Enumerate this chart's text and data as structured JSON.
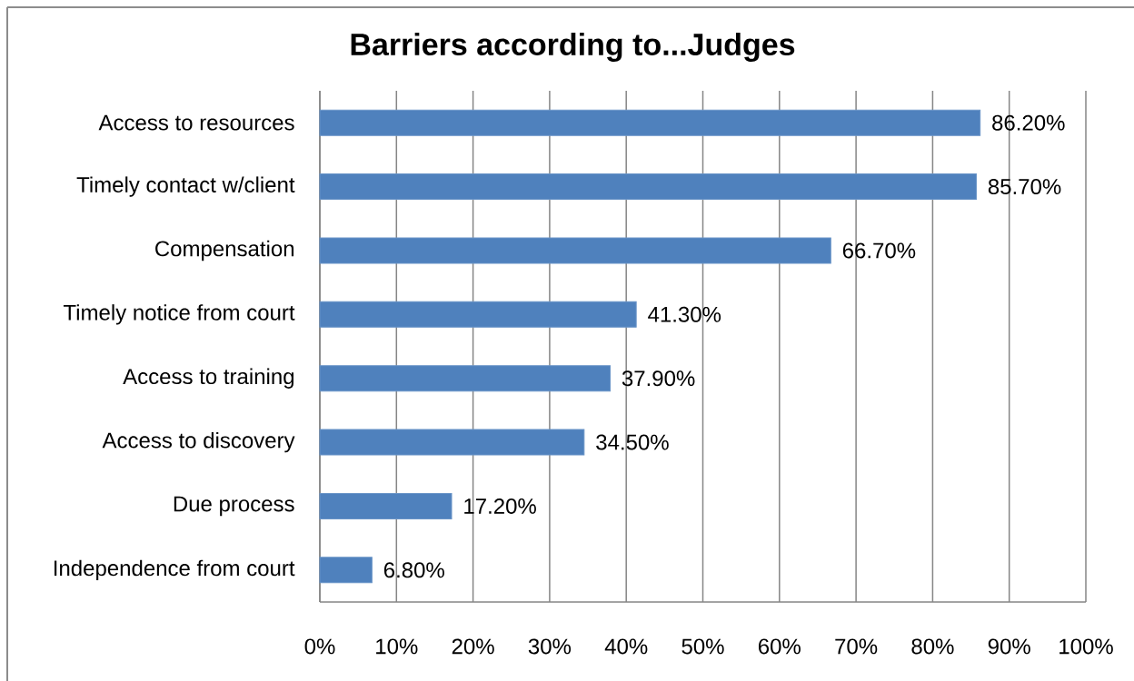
{
  "chart_data": {
    "type": "bar",
    "orientation": "horizontal",
    "title": "Barriers according to...Judges",
    "categories": [
      "Access to resources",
      "Timely contact w/client",
      "Compensation",
      "Timely notice from court",
      "Access to training",
      "Access to discovery",
      "Due process",
      "Independence from court"
    ],
    "values": [
      86.2,
      85.7,
      66.7,
      41.3,
      37.9,
      34.5,
      17.2,
      6.8
    ],
    "value_labels": [
      "86.20%",
      "85.70%",
      "66.70%",
      "41.30%",
      "37.90%",
      "34.50%",
      "17.20%",
      "6.80%"
    ],
    "color": "#4f81bd",
    "xlim": [
      0,
      100
    ],
    "xticks": [
      {
        "value": 0,
        "label": "0%"
      },
      {
        "value": 10,
        "label": "10%"
      },
      {
        "value": 20,
        "label": "20%"
      },
      {
        "value": 30,
        "label": "30%"
      },
      {
        "value": 40,
        "label": "40%"
      },
      {
        "value": 50,
        "label": "50%"
      },
      {
        "value": 60,
        "label": "60%"
      },
      {
        "value": 70,
        "label": "70%"
      },
      {
        "value": 80,
        "label": "80%"
      },
      {
        "value": 90,
        "label": "90%"
      },
      {
        "value": 100,
        "label": "100%"
      }
    ],
    "grid": "x"
  }
}
